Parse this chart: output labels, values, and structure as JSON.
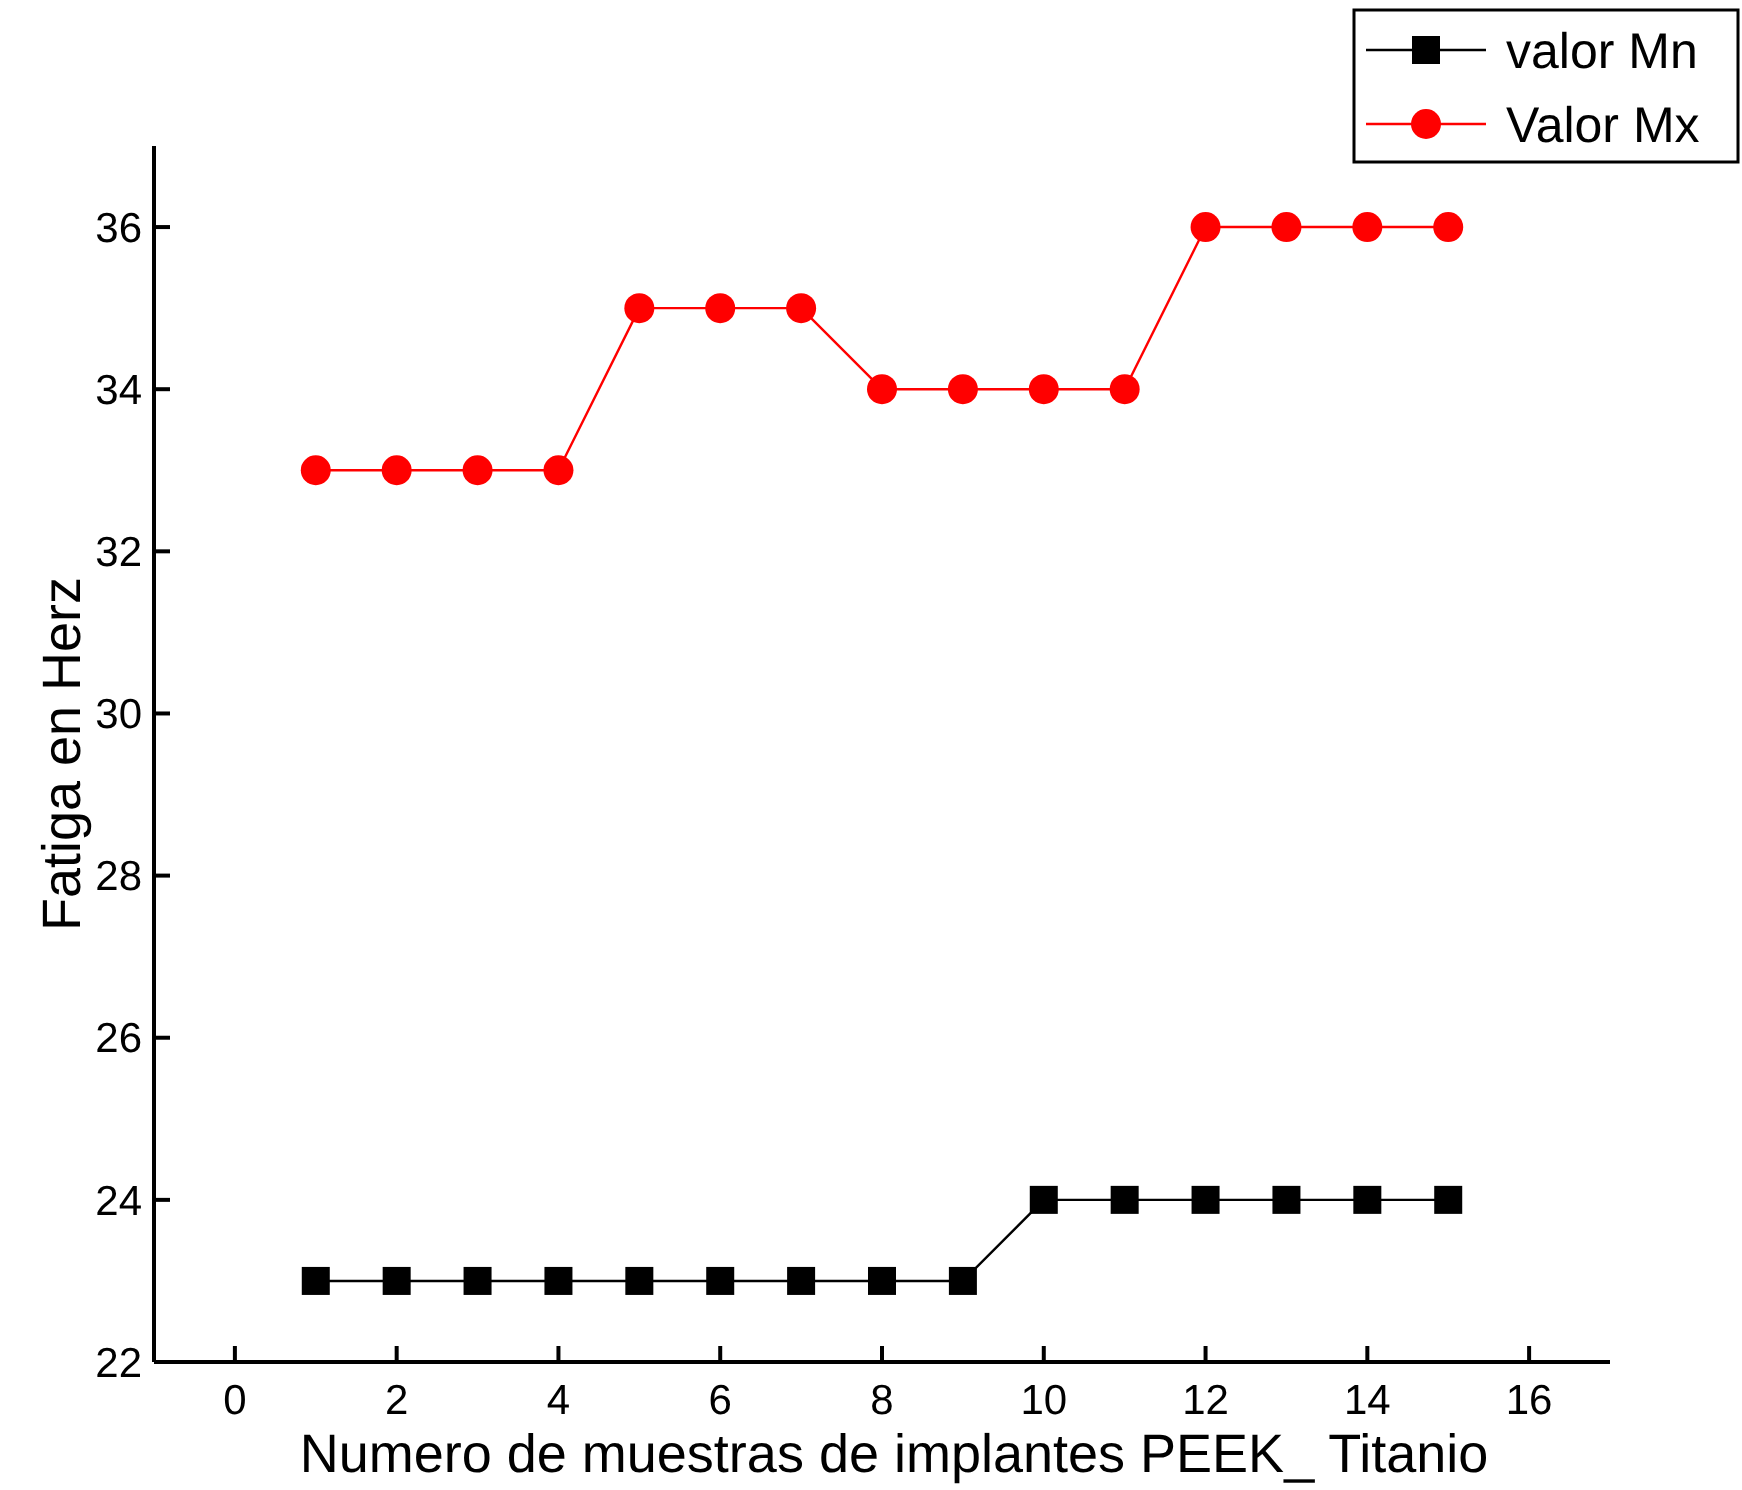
{
  "chart_data": {
    "type": "line",
    "xlabel": "Numero de muestras de implantes PEEK_ Titanio",
    "ylabel": "Fatiga en Herz",
    "x": [
      1,
      2,
      3,
      4,
      5,
      6,
      7,
      8,
      9,
      10,
      11,
      12,
      13,
      14,
      15
    ],
    "series": [
      {
        "name": "valor Mn",
        "color": "#000000",
        "marker": "square",
        "values": [
          23,
          23,
          23,
          23,
          23,
          23,
          23,
          23,
          23,
          24,
          24,
          24,
          24,
          24,
          24
        ]
      },
      {
        "name": "Valor Mx",
        "color": "#ff0000",
        "marker": "circle",
        "values": [
          33,
          33,
          33,
          33,
          35,
          35,
          35,
          34,
          34,
          34,
          34,
          36,
          36,
          36,
          36
        ]
      }
    ],
    "xlim": [
      -1,
      17
    ],
    "xticks": [
      0,
      2,
      4,
      6,
      8,
      10,
      12,
      14,
      16
    ],
    "ylim": [
      22,
      37
    ],
    "yticks": [
      22,
      24,
      26,
      28,
      30,
      32,
      34,
      36
    ],
    "grid": false,
    "legend": "top right",
    "line_style": "solid"
  }
}
